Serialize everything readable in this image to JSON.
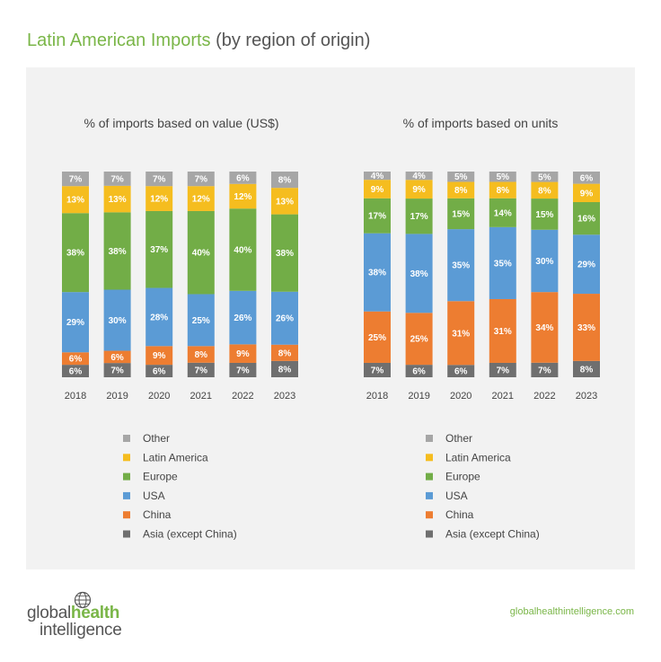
{
  "title": {
    "main": "Latin American Imports",
    "sub": " (by region of origin)"
  },
  "colors": {
    "Other": "#a6a6a6",
    "Latin America": "#f5bd1f",
    "Europe": "#72ad47",
    "USA": "#5b9bd5",
    "China": "#ed7d31",
    "Asia (except China)": "#6f6f6f"
  },
  "chart_data": [
    {
      "type": "bar",
      "stacked": true,
      "title": "% of imports based on value (US$)",
      "categories": [
        "2018",
        "2019",
        "2020",
        "2021",
        "2022",
        "2023"
      ],
      "series": [
        {
          "name": "Asia (except China)",
          "values": [
            6,
            7,
            6,
            7,
            7,
            8
          ]
        },
        {
          "name": "China",
          "values": [
            6,
            6,
            9,
            8,
            9,
            8
          ]
        },
        {
          "name": "USA",
          "values": [
            29,
            30,
            28,
            25,
            26,
            26
          ]
        },
        {
          "name": "Europe",
          "values": [
            38,
            38,
            37,
            40,
            40,
            38
          ]
        },
        {
          "name": "Latin America",
          "values": [
            13,
            13,
            12,
            12,
            12,
            13
          ]
        },
        {
          "name": "Other",
          "values": [
            7,
            7,
            7,
            7,
            6,
            8
          ]
        }
      ],
      "legend": [
        "Other",
        "Latin America",
        "Europe",
        "USA",
        "China",
        "Asia (except China)"
      ]
    },
    {
      "type": "bar",
      "stacked": true,
      "title": "% of imports based on units",
      "categories": [
        "2018",
        "2019",
        "2020",
        "2021",
        "2022",
        "2023"
      ],
      "series": [
        {
          "name": "Asia (except China)",
          "values": [
            7,
            6,
            6,
            7,
            7,
            8
          ]
        },
        {
          "name": "China",
          "values": [
            25,
            25,
            31,
            31,
            34,
            33
          ]
        },
        {
          "name": "USA",
          "values": [
            38,
            38,
            35,
            35,
            30,
            29
          ]
        },
        {
          "name": "Europe",
          "values": [
            17,
            17,
            15,
            14,
            15,
            16
          ]
        },
        {
          "name": "Latin America",
          "values": [
            9,
            9,
            8,
            8,
            8,
            9
          ]
        },
        {
          "name": "Other",
          "values": [
            4,
            4,
            5,
            5,
            5,
            6
          ]
        }
      ],
      "legend": [
        "Other",
        "Latin America",
        "Europe",
        "USA",
        "China",
        "Asia (except China)"
      ]
    }
  ],
  "brand": {
    "pre": "global",
    "highlight": "health",
    "line2": "intelligence"
  },
  "url": "globalhealthintelligence.com"
}
